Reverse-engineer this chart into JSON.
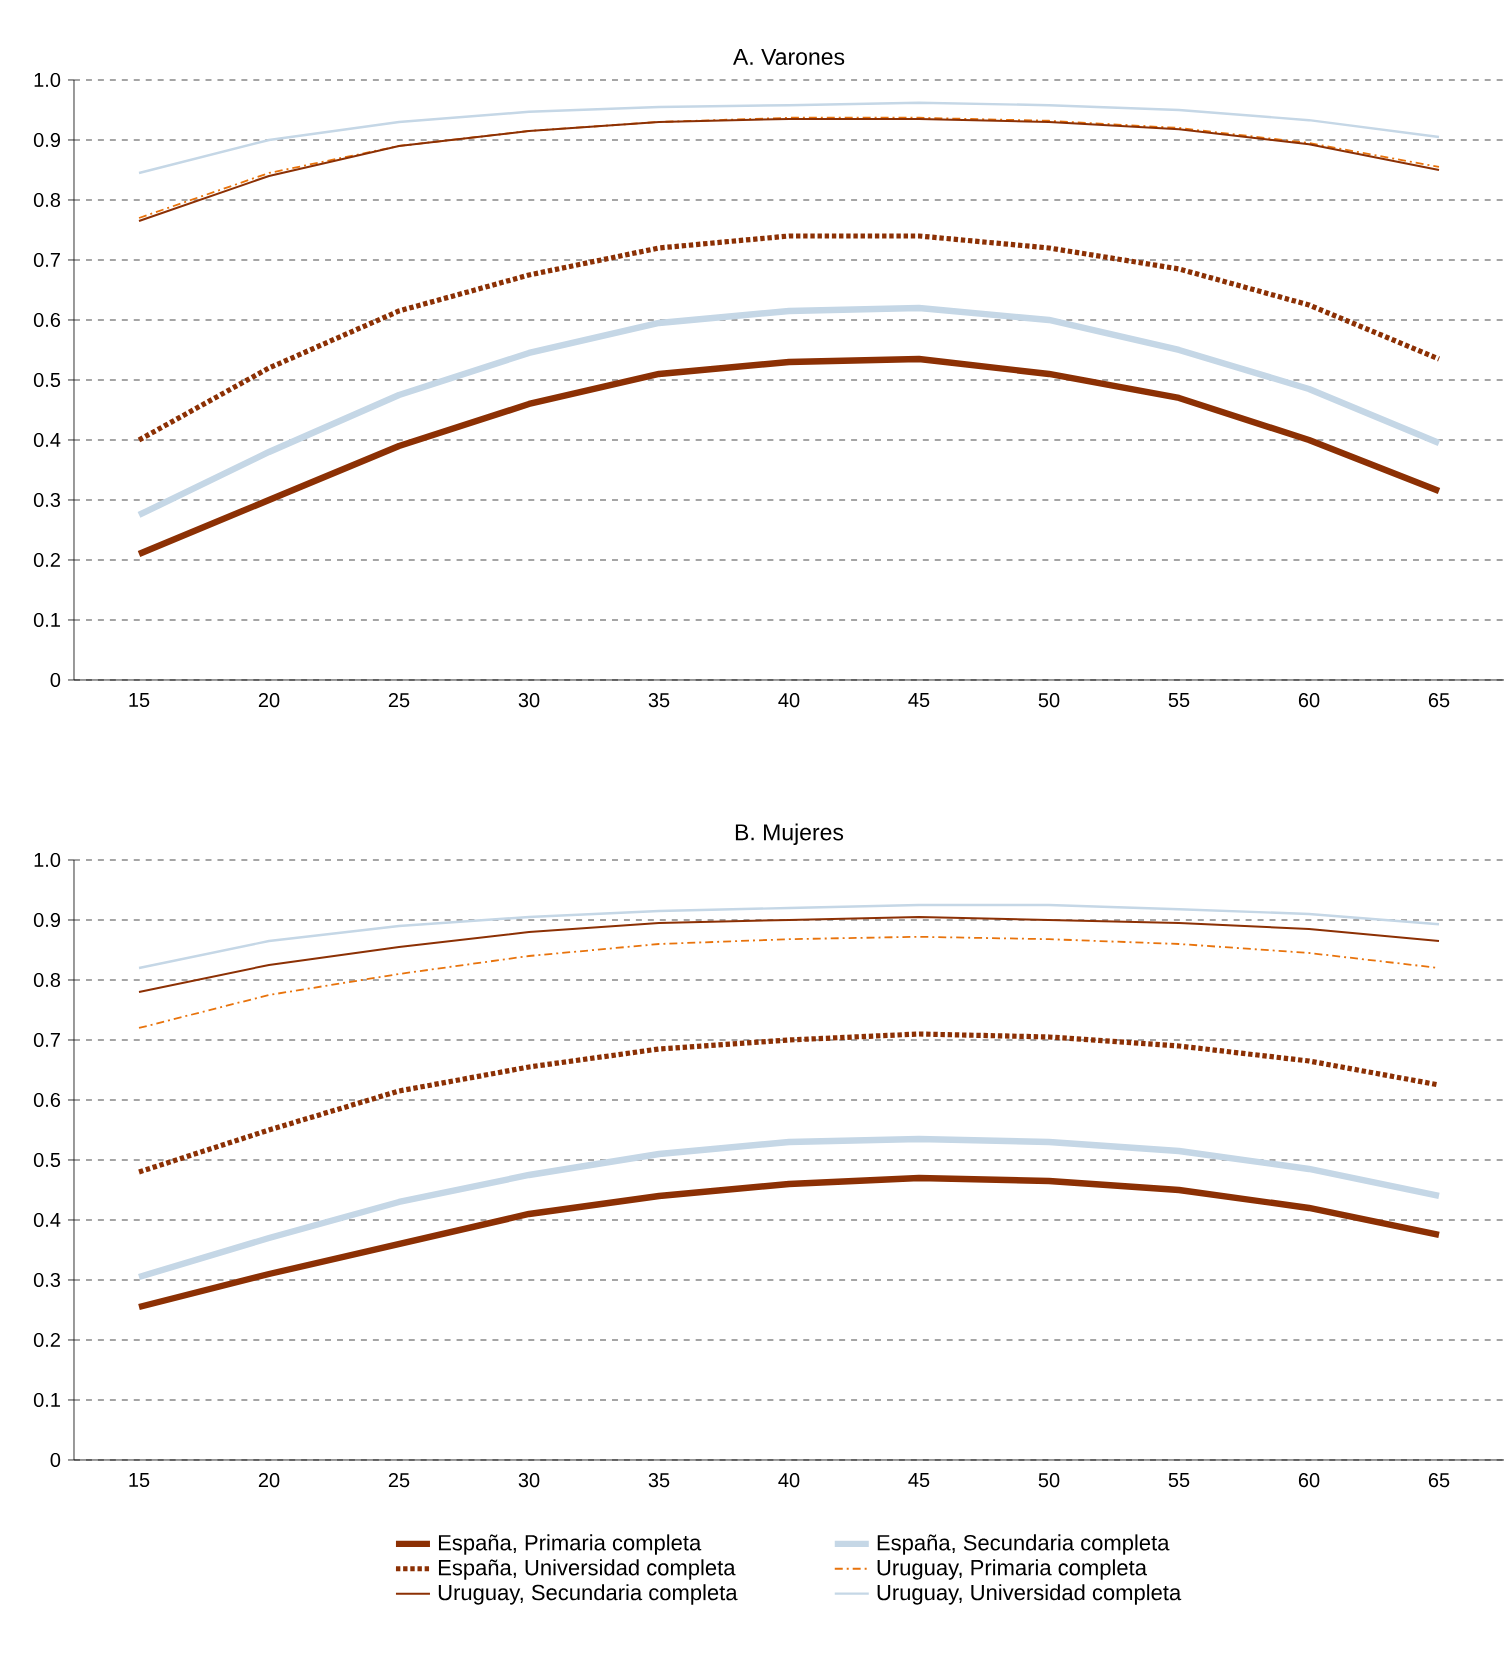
{
  "chart_data": [
    {
      "type": "line",
      "title": "A. Varones",
      "categories": [
        "15",
        "20",
        "25",
        "30",
        "35",
        "40",
        "45",
        "50",
        "55",
        "60",
        "65"
      ],
      "ylim": [
        0,
        1
      ],
      "yticks": [
        0,
        0.1,
        0.2,
        0.3,
        0.4,
        0.5,
        0.6,
        0.7,
        0.8,
        0.9,
        {
          "value": 1,
          "label": "1.0"
        }
      ],
      "grid": "y",
      "legend": false,
      "marker": "none",
      "series": [
        {
          "color": "#8c3004",
          "line_style": "solid",
          "values": [
            0.21,
            0.3,
            0.39,
            0.46,
            0.51,
            0.53,
            0.535,
            0.51,
            0.47,
            0.4,
            0.315
          ]
        },
        {
          "color": "#c5d7e6",
          "line_style": "solid",
          "values": [
            0.275,
            0.38,
            0.475,
            0.545,
            0.595,
            0.615,
            0.62,
            0.6,
            0.55,
            0.485,
            0.395
          ]
        },
        {
          "color": "#8c3004",
          "line_style": "dotted",
          "values": [
            0.4,
            0.52,
            0.615,
            0.675,
            0.72,
            0.74,
            0.74,
            0.72,
            0.685,
            0.625,
            0.535
          ]
        },
        {
          "color": "#e8730c",
          "line_style": "dashed",
          "values": [
            0.77,
            0.845,
            0.89,
            0.915,
            0.93,
            0.937,
            0.937,
            0.932,
            0.92,
            0.895,
            0.855
          ]
        },
        {
          "color": "#8c3004",
          "line_style": "solid",
          "values": [
            0.765,
            0.84,
            0.89,
            0.915,
            0.93,
            0.935,
            0.935,
            0.93,
            0.918,
            0.893,
            0.85
          ]
        },
        {
          "color": "#c5d7e6",
          "line_style": "solid",
          "values": [
            0.845,
            0.9,
            0.93,
            0.947,
            0.955,
            0.958,
            0.962,
            0.958,
            0.95,
            0.933,
            0.905
          ]
        }
      ]
    },
    {
      "type": "line",
      "title": "B. Mujeres",
      "categories": [
        "15",
        "20",
        "25",
        "30",
        "35",
        "40",
        "45",
        "50",
        "55",
        "60",
        "65"
      ],
      "ylim": [
        0,
        1
      ],
      "yticks": [
        0,
        0.1,
        0.2,
        0.3,
        0.4,
        0.5,
        0.6,
        0.7,
        0.8,
        0.9,
        {
          "value": 1,
          "label": "1.0"
        }
      ],
      "grid": "y",
      "legend": "bottom",
      "marker": "none",
      "series": [
        {
          "name": "España, Primaria completa",
          "color": "#8c3004",
          "line_style": "solid",
          "values": [
            0.255,
            0.31,
            0.36,
            0.41,
            0.44,
            0.46,
            0.47,
            0.465,
            0.45,
            0.42,
            0.375
          ]
        },
        {
          "name": "España, Secundaria completa",
          "color": "#c5d7e6",
          "line_style": "solid",
          "values": [
            0.305,
            0.37,
            0.43,
            0.475,
            0.51,
            0.53,
            0.535,
            0.53,
            0.515,
            0.485,
            0.44
          ]
        },
        {
          "name": "España, Universidad completa",
          "color": "#8c3004",
          "line_style": "dotted",
          "values": [
            0.48,
            0.55,
            0.615,
            0.655,
            0.685,
            0.7,
            0.71,
            0.705,
            0.69,
            0.665,
            0.625
          ]
        },
        {
          "name": "Uruguay, Primaria completa",
          "color": "#e8730c",
          "line_style": "dashed",
          "values": [
            0.72,
            0.775,
            0.81,
            0.84,
            0.86,
            0.868,
            0.872,
            0.868,
            0.86,
            0.845,
            0.82
          ]
        },
        {
          "name": "Uruguay, Secundaria completa",
          "color": "#8c3004",
          "line_style": "solid",
          "values": [
            0.78,
            0.825,
            0.855,
            0.88,
            0.895,
            0.9,
            0.905,
            0.9,
            0.895,
            0.885,
            0.865
          ]
        },
        {
          "name": "Uruguay, Universidad completa",
          "color": "#c5d7e6",
          "line_style": "solid",
          "values": [
            0.82,
            0.865,
            0.89,
            0.905,
            0.915,
            0.92,
            0.925,
            0.925,
            0.918,
            0.91,
            0.893
          ]
        }
      ]
    }
  ]
}
